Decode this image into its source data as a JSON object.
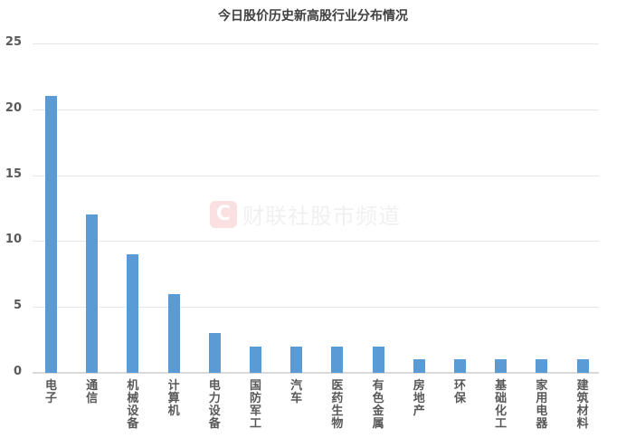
{
  "chart_data": {
    "type": "bar",
    "title": "今日股价历史新高股行业分布情况",
    "xlabel": "",
    "ylabel": "",
    "ylim": [
      0,
      25
    ],
    "yticks": [
      0,
      5,
      10,
      15,
      20,
      25
    ],
    "grid": true,
    "legend": null,
    "bar_color": "#5b9bd5",
    "categories": [
      "电子",
      "通信",
      "机械设备",
      "计算机",
      "电力设备",
      "国防军工",
      "汽车",
      "医药生物",
      "有色金属",
      "房地产",
      "环保",
      "基础化工",
      "家用电器",
      "建筑材料"
    ],
    "values": [
      21,
      12,
      9,
      6,
      3,
      2,
      2,
      2,
      2,
      1,
      1,
      1,
      1,
      1
    ]
  },
  "watermark": {
    "logo": "C",
    "text": "财联社股市频道"
  }
}
